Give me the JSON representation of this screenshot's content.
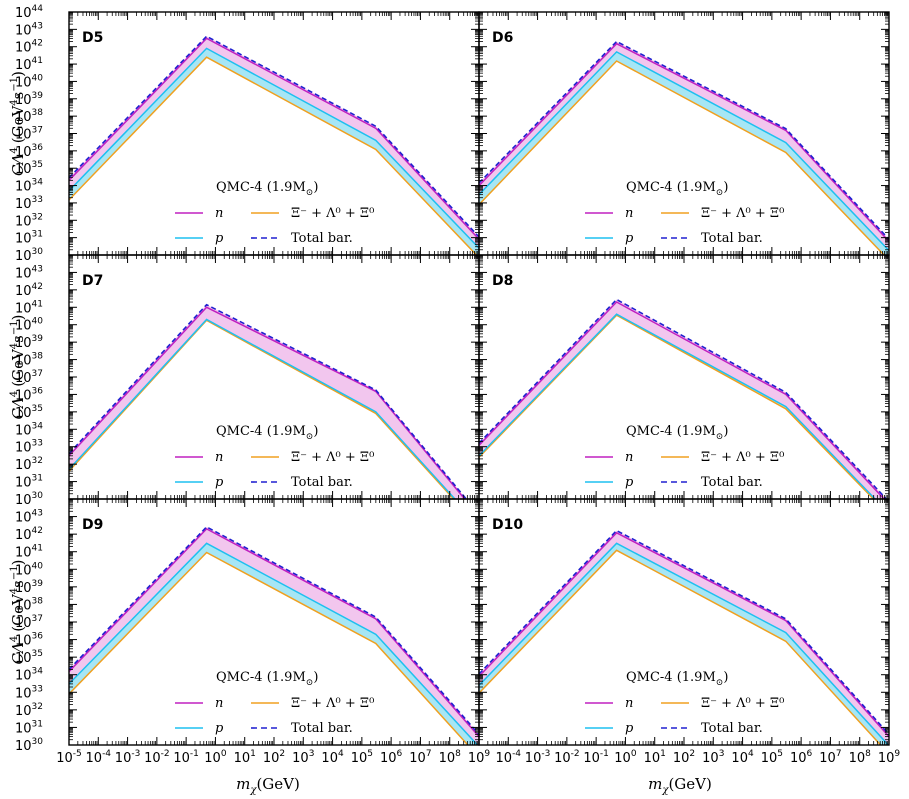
{
  "figure": {
    "xlabel_var": "m",
    "xlabel_sub": "χ",
    "xlabel_unit": "(GeV)",
    "ylabel_var": "CΛ",
    "ylabel_sup": "4",
    "ylabel_unit_open": "(GeV",
    "ylabel_unit_sup": "4",
    "ylabel_unit_mid": "s",
    "ylabel_unit_sup2": "−1",
    "ylabel_unit_close": ")",
    "legend_title": "QMC-4 (1.9M",
    "legend_title_sub": "⊙",
    "legend_title_close": ")",
    "legend": [
      {
        "key": "n",
        "label": "n",
        "color": "#c020c0",
        "dash": false
      },
      {
        "key": "p",
        "label": "p",
        "color": "#1ec0f0",
        "dash": false
      },
      {
        "key": "xi",
        "label": "Ξ⁻ + Λ⁰ + Ξ⁰",
        "color": "#f0a020",
        "dash": false
      },
      {
        "key": "total",
        "label": "Total bar.",
        "color": "#2020d0",
        "dash": true
      }
    ],
    "colors": {
      "n": "#c020c0",
      "p": "#1ec0f0",
      "xi": "#f0a020",
      "total": "#2020d0",
      "fill_n": "#f2c6ee",
      "fill_p": "#a6e6f5"
    }
  },
  "chart_data": [
    {
      "type": "line",
      "panel": "D5",
      "xscale": "log",
      "yscale": "log",
      "xlim": [
        1e-05,
        1000000000.0
      ],
      "ylim": [
        1e+30,
        1e+44
      ],
      "x": [
        1e-05,
        0.5,
        300000.0,
        1000000000.0
      ],
      "series": [
        {
          "name": "n",
          "values": [
            2e+34,
            3e+42,
            2e+37,
            8e+30
          ]
        },
        {
          "name": "p",
          "values": [
            5e+33,
            8e+41,
            4e+36,
            2.5e+30
          ]
        },
        {
          "name": "Ξ⁻ + Λ⁰ + Ξ⁰",
          "values": [
            1.5e+33,
            2.5e+41,
            1.2e+36,
            7e+29
          ]
        },
        {
          "name": "Total bar.",
          "values": [
            2.8e+34,
            4e+42,
            2.6e+37,
            1.1e+31
          ]
        }
      ],
      "x_ticks": [
        "-5",
        "-4",
        "-3",
        "-2",
        "-1",
        "0",
        "1",
        "2",
        "3",
        "4",
        "5",
        "6",
        "7",
        "8",
        "9"
      ],
      "y_ticks": [
        "30",
        "31",
        "32",
        "33",
        "34",
        "35",
        "36",
        "37",
        "38",
        "39",
        "40",
        "41",
        "42",
        "43",
        "44"
      ]
    },
    {
      "type": "line",
      "panel": "D6",
      "xscale": "log",
      "yscale": "log",
      "xlim": [
        1e-05,
        1000000000.0
      ],
      "ylim": [
        1e+30,
        1e+44
      ],
      "x": [
        1e-05,
        0.5,
        300000.0,
        1000000000.0
      ],
      "series": [
        {
          "name": "n",
          "values": [
            1e+34,
            1.5e+42,
            1.5e+37,
            6e+30
          ]
        },
        {
          "name": "p",
          "values": [
            3e+33,
            5e+41,
            3e+36,
            1.8e+30
          ]
        },
        {
          "name": "Ξ⁻ + Λ⁰ + Ξ⁰",
          "values": [
            8e+32,
            1.5e+41,
            8e+35,
            5e+29
          ]
        },
        {
          "name": "Total bar.",
          "values": [
            1.4e+34,
            2e+42,
            1.9e+37,
            8e+30
          ]
        }
      ],
      "x_ticks": [
        "-5",
        "-4",
        "-3",
        "-2",
        "-1",
        "0",
        "1",
        "2",
        "3",
        "4",
        "5",
        "6",
        "7",
        "8",
        "9"
      ],
      "y_ticks": [
        "30",
        "31",
        "32",
        "33",
        "34",
        "35",
        "36",
        "37",
        "38",
        "39",
        "40",
        "41",
        "42",
        "43"
      ]
    },
    {
      "type": "line",
      "panel": "D7",
      "xscale": "log",
      "yscale": "log",
      "xlim": [
        1e-05,
        1000000000.0
      ],
      "ylim": [
        1e+30,
        1e+44
      ],
      "x": [
        1e-05,
        0.5,
        300000.0,
        1000000000.0
      ],
      "series": [
        {
          "name": "n",
          "values": [
            3e+32,
            1e+41,
            1.5e+36,
            1e+29
          ]
        },
        {
          "name": "p",
          "values": [
            5e+31,
            2e+40,
            1e+35,
            3e+28
          ]
        },
        {
          "name": "Ξ⁻ + Λ⁰ + Ξ⁰",
          "values": [
            4e+31,
            1.8e+40,
            8e+34,
            2.5e+28
          ]
        },
        {
          "name": "Total bar.",
          "values": [
            4e+32,
            1.4e+41,
            1.8e+36,
            1.3e+29
          ]
        }
      ],
      "x_ticks": [
        "-5",
        "-4",
        "-3",
        "-2",
        "-1",
        "0",
        "1",
        "2",
        "3",
        "4",
        "5",
        "6",
        "7",
        "8",
        "9"
      ],
      "y_ticks": [
        "30",
        "31",
        "32",
        "33",
        "34",
        "35",
        "36",
        "37",
        "38",
        "39",
        "40",
        "41",
        "42",
        "43"
      ]
    },
    {
      "type": "line",
      "panel": "D8",
      "xscale": "log",
      "yscale": "log",
      "xlim": [
        1e-05,
        1000000000.0
      ],
      "ylim": [
        1e+30,
        1e+44
      ],
      "x": [
        1e-05,
        0.5,
        300000.0,
        1000000000.0
      ],
      "series": [
        {
          "name": "n",
          "values": [
            1.2e+33,
            2e+41,
            1e+36,
            5e+29
          ]
        },
        {
          "name": "p",
          "values": [
            3e+32,
            4e+40,
            2e+35,
            1.5e+29
          ]
        },
        {
          "name": "Ξ⁻ + Λ⁰ + Ξ⁰",
          "values": [
            2.5e+32,
            3.5e+40,
            1.5e+35,
            1.2e+29
          ]
        },
        {
          "name": "Total bar.",
          "values": [
            1.6e+33,
            2.8e+41,
            1.3e+36,
            7e+29
          ]
        }
      ],
      "x_ticks": [
        "-5",
        "-4",
        "-3",
        "-2",
        "-1",
        "0",
        "1",
        "2",
        "3",
        "4",
        "5",
        "6",
        "7",
        "8",
        "9"
      ],
      "y_ticks": [
        "30",
        "31",
        "32",
        "33",
        "34",
        "35",
        "36",
        "37",
        "38",
        "39",
        "40",
        "41",
        "42",
        "43"
      ]
    },
    {
      "type": "line",
      "panel": "D9",
      "xscale": "log",
      "yscale": "log",
      "xlim": [
        1e-05,
        1000000000.0
      ],
      "ylim": [
        1e+30,
        1e+44
      ],
      "x": [
        1e-05,
        0.5,
        300000.0,
        1000000000.0
      ],
      "series": [
        {
          "name": "n",
          "values": [
            1.5e+34,
            2e+42,
            1.5e+37,
            3e+30
          ]
        },
        {
          "name": "p",
          "values": [
            3e+33,
            3e+41,
            2e+36,
            8e+29
          ]
        },
        {
          "name": "Ξ⁻ + Λ⁰ + Ξ⁰",
          "values": [
            8e+32,
            9e+40,
            6e+35,
            2e+29
          ]
        },
        {
          "name": "Total bar.",
          "values": [
            2e+34,
            2.6e+42,
            1.9e+37,
            4e+30
          ]
        }
      ],
      "x_ticks": [
        "-5",
        "-4",
        "-3",
        "-2",
        "-1",
        "0",
        "1",
        "2",
        "3",
        "4",
        "5",
        "6",
        "7",
        "8",
        "9"
      ],
      "y_ticks": [
        "30",
        "31",
        "32",
        "33",
        "34",
        "35",
        "36",
        "37",
        "38",
        "39",
        "40",
        "41",
        "42",
        "43"
      ]
    },
    {
      "type": "line",
      "panel": "D10",
      "xscale": "log",
      "yscale": "log",
      "xlim": [
        1e-05,
        1000000000.0
      ],
      "ylim": [
        1e+30,
        1e+44
      ],
      "x": [
        1e-05,
        0.5,
        300000.0,
        1000000000.0
      ],
      "series": [
        {
          "name": "n",
          "values": [
            8e+33,
            1.2e+42,
            1.2e+37,
            3e+30
          ]
        },
        {
          "name": "p",
          "values": [
            2.5e+33,
            3e+41,
            2.5e+36,
            9e+29
          ]
        },
        {
          "name": "Ξ⁻ + Λ⁰ + Ξ⁰",
          "values": [
            9e+32,
            1.2e+41,
            8e+35,
            3e+29
          ]
        },
        {
          "name": "Total bar.",
          "values": [
            1.1e+34,
            1.6e+42,
            1.5e+37,
            4e+30
          ]
        }
      ],
      "x_ticks": [
        "-5",
        "-4",
        "-3",
        "-2",
        "-1",
        "0",
        "1",
        "2",
        "3",
        "4",
        "5",
        "6",
        "7",
        "8",
        "9"
      ],
      "y_ticks": [
        "30",
        "31",
        "32",
        "33",
        "34",
        "35",
        "36",
        "37",
        "38",
        "39",
        "40",
        "41",
        "42",
        "43"
      ]
    }
  ]
}
